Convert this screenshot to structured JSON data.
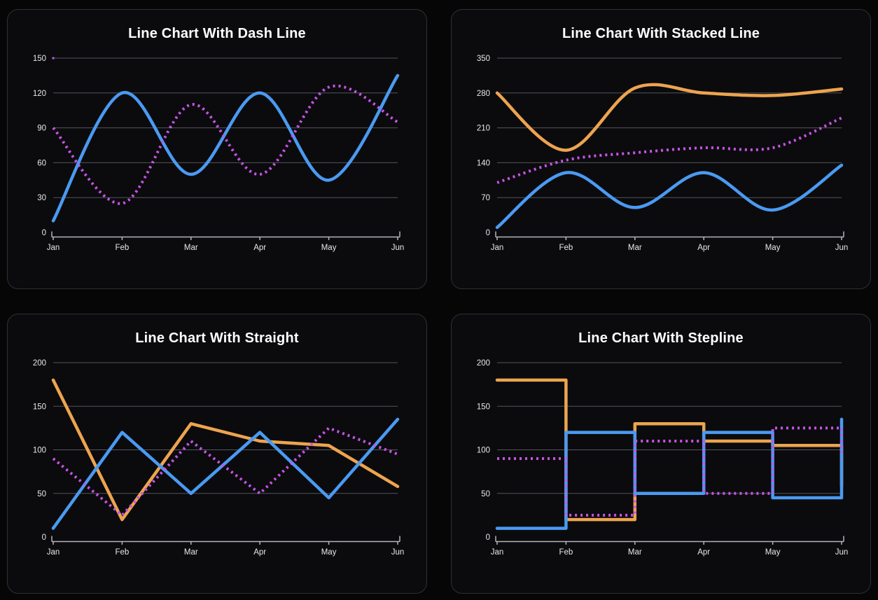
{
  "page": {
    "background": "#060607",
    "card_background": "#0b0b0d",
    "card_border": "#2e3036",
    "title_color": "#ffffff",
    "grid_color": "#53555c",
    "axis_color": "#b3b5ba",
    "tick_label_color": "#e8e8ec"
  },
  "chart_data": [
    {
      "type": "line",
      "interpolation": "smooth",
      "stacked": false,
      "title": "Line Chart With Dash Line",
      "categories": [
        "Jan",
        "Feb",
        "Mar",
        "Apr",
        "May",
        "Jun"
      ],
      "xlabel": "",
      "ylabel": "",
      "ylim": [
        0,
        150
      ],
      "y_ticks": [
        0,
        30,
        60,
        90,
        120,
        150
      ],
      "grid": true,
      "legend": "none",
      "max_gridline_dot": true,
      "series": [
        {
          "name": "blue-solid",
          "color": "#4a9af2",
          "line_style": "solid",
          "values": [
            10,
            120,
            50,
            120,
            45,
            135
          ]
        },
        {
          "name": "magenta-dotted",
          "color": "#c653e6",
          "line_style": "dotted",
          "values": [
            90,
            25,
            110,
            50,
            125,
            95
          ]
        }
      ]
    },
    {
      "type": "line",
      "interpolation": "smooth",
      "stacked": true,
      "title": "Line Chart With Stacked Line",
      "categories": [
        "Jan",
        "Feb",
        "Mar",
        "Apr",
        "May",
        "Jun"
      ],
      "xlabel": "",
      "ylabel": "",
      "ylim": [
        0,
        350
      ],
      "y_ticks": [
        0,
        70,
        140,
        210,
        280,
        350
      ],
      "grid": true,
      "legend": "none",
      "max_gridline_dot": false,
      "series": [
        {
          "name": "blue-solid",
          "color": "#4a9af2",
          "line_style": "solid",
          "values": [
            10,
            120,
            50,
            120,
            45,
            135
          ]
        },
        {
          "name": "magenta-dotted",
          "color": "#c653e6",
          "line_style": "dotted",
          "values": [
            90,
            25,
            110,
            50,
            125,
            95
          ]
        },
        {
          "name": "orange-solid",
          "color": "#eda44f",
          "line_style": "solid",
          "values": [
            180,
            20,
            130,
            110,
            105,
            58
          ]
        }
      ]
    },
    {
      "type": "line",
      "interpolation": "straight",
      "stacked": false,
      "title": "Line Chart With Straight",
      "categories": [
        "Jan",
        "Feb",
        "Mar",
        "Apr",
        "May",
        "Jun"
      ],
      "xlabel": "",
      "ylabel": "",
      "ylim": [
        0,
        200
      ],
      "y_ticks": [
        0,
        50,
        100,
        150,
        200
      ],
      "grid": true,
      "legend": "none",
      "max_gridline_dot": false,
      "series": [
        {
          "name": "orange-solid",
          "color": "#eda44f",
          "line_style": "solid",
          "values": [
            180,
            20,
            130,
            110,
            105,
            58
          ]
        },
        {
          "name": "blue-solid",
          "color": "#4a9af2",
          "line_style": "solid",
          "values": [
            10,
            120,
            50,
            120,
            45,
            135
          ]
        },
        {
          "name": "magenta-dotted",
          "color": "#c653e6",
          "line_style": "dotted",
          "values": [
            90,
            25,
            110,
            50,
            125,
            95
          ]
        }
      ]
    },
    {
      "type": "line",
      "interpolation": "step-after",
      "stacked": false,
      "title": "Line Chart With Stepline",
      "categories": [
        "Jan",
        "Feb",
        "Mar",
        "Apr",
        "May",
        "Jun"
      ],
      "xlabel": "",
      "ylabel": "",
      "ylim": [
        0,
        200
      ],
      "y_ticks": [
        0,
        50,
        100,
        150,
        200
      ],
      "grid": true,
      "legend": "none",
      "max_gridline_dot": false,
      "series": [
        {
          "name": "orange-solid",
          "color": "#eda44f",
          "line_style": "solid",
          "values": [
            180,
            20,
            130,
            110,
            105,
            58
          ]
        },
        {
          "name": "blue-solid",
          "color": "#4a9af2",
          "line_style": "solid",
          "values": [
            10,
            120,
            50,
            120,
            45,
            135
          ]
        },
        {
          "name": "magenta-dotted",
          "color": "#c653e6",
          "line_style": "dotted",
          "values": [
            90,
            25,
            110,
            50,
            125,
            95
          ]
        }
      ]
    }
  ]
}
